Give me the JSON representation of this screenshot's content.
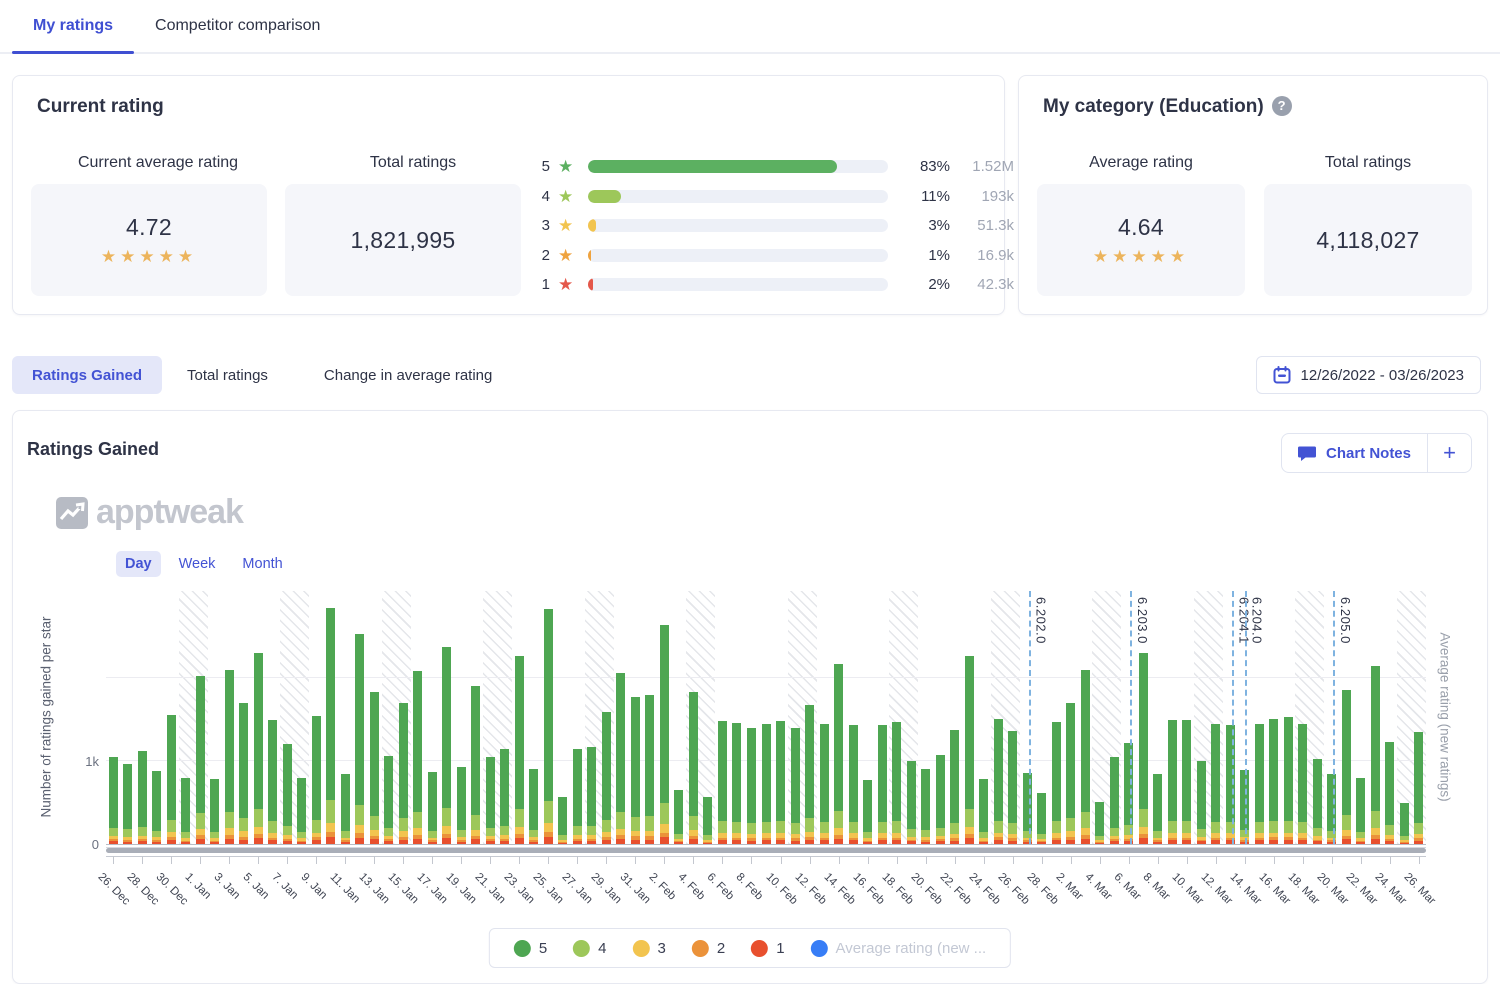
{
  "top_tabs": {
    "my_ratings": "My ratings",
    "competitor": "Competitor comparison"
  },
  "current_rating_card": {
    "title": "Current rating",
    "avg_label": "Current average rating",
    "avg_value": "4.72",
    "avg_stars": "★★★★★",
    "total_label": "Total ratings",
    "total_value": "1,821,995",
    "distribution": [
      {
        "star": "5",
        "pct": "83%",
        "count": "1.52M",
        "fill": 83,
        "color": "#5cb061"
      },
      {
        "star": "4",
        "pct": "11%",
        "count": "193k",
        "fill": 11,
        "color": "#9dc75a"
      },
      {
        "star": "3",
        "pct": "3%",
        "count": "51.3k",
        "fill": 2.6,
        "color": "#f2c44f"
      },
      {
        "star": "2",
        "pct": "1%",
        "count": "16.9k",
        "fill": 1.0,
        "color": "#efa33f"
      },
      {
        "star": "1",
        "pct": "2%",
        "count": "42.3k",
        "fill": 1.7,
        "color": "#e4574a"
      }
    ]
  },
  "category_card": {
    "title": "My category (Education)",
    "help_icon": "?",
    "avg_label": "Average rating",
    "avg_value": "4.64",
    "avg_stars": "★★★★★",
    "total_label": "Total ratings",
    "total_value": "4,118,027"
  },
  "view_tabs": {
    "ratings_gained": "Ratings Gained",
    "total_ratings": "Total ratings",
    "change_avg": "Change in average rating"
  },
  "date_range": "12/26/2022 - 03/26/2023",
  "chart_card": {
    "title": "Ratings Gained",
    "chart_notes_label": "Chart Notes",
    "plus_label": "+",
    "watermark": "apptweak",
    "granularity": [
      "Day",
      "Week",
      "Month"
    ],
    "active_granularity": "Day"
  },
  "chart_data": {
    "type": "bar",
    "stacked": true,
    "title": "Ratings Gained",
    "ylabel_left": "Number of ratings gained per star",
    "ylabel_right": "Average rating (new ratings)",
    "y_ticks": [
      {
        "label": "0",
        "value": 0
      },
      {
        "label": "1k",
        "value": 1000
      }
    ],
    "gridline_values": [
      1000,
      2000
    ],
    "ylim": [
      0,
      3050
    ],
    "start_date": "2022-12-26",
    "end_date": "2023-03-26",
    "x_tick_labels": [
      "26. Dec",
      "28. Dec",
      "30. Dec",
      "1. Jan",
      "3. Jan",
      "5. Jan",
      "7. Jan",
      "9. Jan",
      "11. Jan",
      "13. Jan",
      "15. Jan",
      "17. Jan",
      "19. Jan",
      "21. Jan",
      "23. Jan",
      "25. Jan",
      "27. Jan",
      "29. Jan",
      "31. Jan",
      "2. Feb",
      "4. Feb",
      "6. Feb",
      "8. Feb",
      "10. Feb",
      "12. Feb",
      "14. Feb",
      "16. Feb",
      "18. Feb",
      "20. Feb",
      "22. Feb",
      "24. Feb",
      "26. Feb",
      "28. Feb",
      "2. Mar",
      "4. Mar",
      "6. Mar",
      "8. Mar",
      "10. Mar",
      "12. Mar",
      "14. Mar",
      "16. Mar",
      "18. Mar",
      "20. Mar",
      "22. Mar",
      "24. Mar",
      "26. Mar"
    ],
    "totals": [
      1050,
      960,
      1120,
      880,
      1550,
      800,
      2030,
      780,
      2100,
      1700,
      2300,
      1500,
      1200,
      790,
      1540,
      2850,
      850,
      2530,
      1830,
      1060,
      1700,
      2080,
      870,
      2370,
      930,
      1900,
      1050,
      1150,
      2270,
      910,
      2830,
      570,
      1150,
      1170,
      1590,
      2060,
      1770,
      1800,
      2640,
      650,
      1830,
      570,
      1480,
      1460,
      1400,
      1450,
      1480,
      1400,
      1670,
      1450,
      2170,
      1440,
      770,
      1430,
      1470,
      1000,
      900,
      1070,
      1380,
      2270,
      780,
      1510,
      1360,
      860,
      620,
      1470,
      1700,
      2100,
      510,
      1050,
      1220,
      2300,
      840,
      1500,
      1490,
      1000,
      1450,
      1430,
      890,
      1450,
      1510,
      1530,
      1450,
      1020,
      850,
      1860,
      790,
      2150,
      1230,
      500,
      1350
    ],
    "stack_order_bottom_up": [
      "1",
      "2",
      "3",
      "4",
      "5"
    ],
    "stack_fractions": {
      "5": 0.815,
      "4": 0.095,
      "3": 0.038,
      "2": 0.022,
      "1": 0.03
    },
    "series_colors": {
      "5": "#4ea652",
      "4": "#9dc75a",
      "3": "#f2c44f",
      "2": "#eb923a",
      "1": "#e8502e"
    },
    "weekend_saturday_indices": [
      5,
      12,
      19,
      26,
      33,
      40,
      47,
      54,
      61,
      68,
      75,
      82,
      89
    ],
    "version_markers": [
      {
        "label": "6.202.0",
        "x_day": 63.6
      },
      {
        "label": "6.203.0",
        "x_day": 70.6
      },
      {
        "label": "6.204.1",
        "x_day": 77.6
      },
      {
        "label": "6.204.0",
        "x_day": 78.5
      },
      {
        "label": "6.205.0",
        "x_day": 84.6
      }
    ],
    "legend": [
      {
        "label": "5",
        "color": "#4ea652",
        "disabled": false
      },
      {
        "label": "4",
        "color": "#9dc75a",
        "disabled": false
      },
      {
        "label": "3",
        "color": "#f2c44f",
        "disabled": false
      },
      {
        "label": "2",
        "color": "#eb923a",
        "disabled": false
      },
      {
        "label": "1",
        "color": "#e8502e",
        "disabled": false
      },
      {
        "label": "Average rating (new ...",
        "color": "#377df6",
        "disabled": true
      }
    ]
  }
}
